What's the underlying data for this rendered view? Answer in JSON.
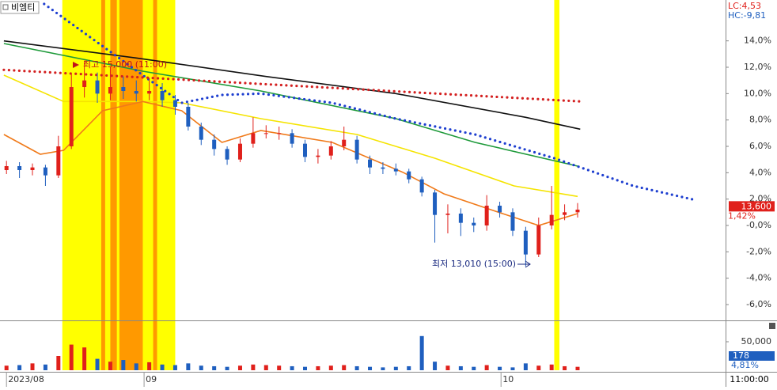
{
  "chart_data": {
    "type": "candlestick",
    "title": "비엠티",
    "lc_label": "LC:4,53",
    "hc_label": "HC:-9,81",
    "xlim": [
      -0.5,
      55.4
    ],
    "ylim": [
      -7.2,
      17.1
    ],
    "yticks": [
      {
        "value": 14,
        "label": "14,0%"
      },
      {
        "value": 12,
        "label": "12,0%"
      },
      {
        "value": 10,
        "label": "10,0%"
      },
      {
        "value": 8,
        "label": "8,0%"
      },
      {
        "value": 6,
        "label": "6,0%"
      },
      {
        "value": 4,
        "label": "4,0%"
      },
      {
        "value": 2,
        "label": "2,0%"
      },
      {
        "value": 0,
        "label": "-0,0%"
      },
      {
        "value": -2,
        "label": "-2,0%"
      },
      {
        "value": -4,
        "label": "-4,0%"
      },
      {
        "value": -6,
        "label": "-6,0%"
      }
    ],
    "xticks": [
      {
        "value": 0,
        "label": "2023/08"
      },
      {
        "value": 10.6,
        "label": "09"
      },
      {
        "value": 38.1,
        "label": "10"
      }
    ],
    "time_label": "11:00:00",
    "grid": false,
    "up_color": "#e0201b",
    "down_color": "#1f5fbf",
    "open": [
      4.2,
      4.5,
      4.2,
      4.4,
      3.8,
      6.0,
      10.5,
      11.0,
      10.0,
      10.5,
      10.2,
      10.0,
      10.2,
      9.5,
      9.0,
      7.5,
      6.5,
      5.8,
      5.0,
      6.2,
      7.0,
      7.0,
      7.0,
      6.2,
      5.2,
      5.3,
      6.0,
      6.5,
      5.0,
      4.4,
      4.3,
      4.1,
      3.5,
      2.5,
      0.8,
      0.9,
      0.2,
      0.0,
      1.5,
      1.0,
      -0.4,
      -2.2,
      0.0,
      0.8,
      1.0
    ],
    "high": [
      4.9,
      4.8,
      4.7,
      4.6,
      6.8,
      11.5,
      12.5,
      11.6,
      12.0,
      11.3,
      11.0,
      11.2,
      10.8,
      9.9,
      9.3,
      7.8,
      6.9,
      6.0,
      6.6,
      8.2,
      7.6,
      7.5,
      7.3,
      6.5,
      5.8,
      6.4,
      7.5,
      6.8,
      5.3,
      4.8,
      4.7,
      4.3,
      3.7,
      2.7,
      1.6,
      1.3,
      0.6,
      2.3,
      1.8,
      1.3,
      -0.1,
      0.6,
      3.0,
      1.6,
      1.7
    ],
    "low": [
      3.9,
      3.6,
      3.8,
      3.0,
      3.6,
      5.8,
      9.7,
      9.3,
      9.5,
      9.6,
      9.4,
      9.5,
      9.0,
      8.4,
      7.2,
      6.1,
      5.3,
      4.6,
      4.8,
      5.9,
      6.6,
      6.5,
      5.9,
      4.8,
      4.7,
      5.0,
      5.7,
      4.7,
      3.9,
      3.9,
      3.8,
      3.2,
      2.2,
      -1.3,
      -0.6,
      -0.8,
      -0.5,
      -0.4,
      0.6,
      -0.8,
      -3.1,
      -2.4,
      -0.3,
      0.4,
      0.6
    ],
    "close": [
      4.5,
      4.2,
      4.4,
      3.8,
      6.0,
      10.5,
      11.0,
      10.0,
      10.5,
      10.2,
      10.0,
      10.2,
      9.5,
      9.0,
      7.5,
      6.5,
      5.8,
      5.0,
      6.2,
      7.0,
      7.0,
      7.0,
      6.2,
      5.2,
      5.3,
      6.0,
      6.5,
      5.0,
      4.4,
      4.3,
      4.1,
      3.5,
      2.5,
      0.8,
      0.9,
      0.2,
      0.0,
      1.5,
      1.0,
      -0.4,
      -2.2,
      0.0,
      0.8,
      1.0,
      1.2
    ],
    "lines": [
      {
        "color": "#111111",
        "style": "solid",
        "x": [
          -0.2,
          10,
          20,
          30,
          40,
          44.2
        ],
        "values": [
          14.0,
          12.7,
          11.3,
          10.0,
          8.2,
          7.3
        ]
      },
      {
        "color": "#1e9a3a",
        "style": "solid",
        "x": [
          -0.2,
          10.5,
          19.6,
          30,
          36.1,
          44
        ],
        "values": [
          13.8,
          11.7,
          10.2,
          8.1,
          6.3,
          4.5
        ]
      },
      {
        "color": "#f5e400",
        "style": "solid",
        "x": [
          -0.2,
          4.4,
          10.5,
          13.5,
          19.6,
          27,
          33,
          39.1,
          44
        ],
        "values": [
          11.4,
          9.4,
          9.4,
          9.3,
          8.1,
          6.9,
          5.1,
          3.0,
          2.2
        ]
      },
      {
        "color": "#f07a1a",
        "style": "solid",
        "x": [
          -0.2,
          2.6,
          4.4,
          7.4,
          10.5,
          13.5,
          16.6,
          19.6,
          25.1,
          30.6,
          33.7,
          37.3,
          41,
          44
        ],
        "values": [
          6.9,
          5.4,
          5.7,
          8.7,
          9.4,
          8.7,
          6.3,
          7.2,
          6.3,
          4.0,
          2.4,
          1.2,
          0,
          0.9
        ]
      },
      {
        "color": "#1e3fd0",
        "style": "dotted",
        "x": [
          2.9,
          10.5,
          13.5,
          16.6,
          19.6,
          25.1,
          30,
          36.1,
          42.2,
          48.3,
          53.2
        ],
        "values": [
          16.8,
          11.4,
          9.3,
          9.9,
          10.0,
          9.3,
          8.1,
          6.9,
          5.1,
          3.0,
          1.9
        ]
      },
      {
        "color": "#d42020",
        "style": "dotted",
        "x": [
          -0.2,
          44.3
        ],
        "values": [
          11.8,
          9.4
        ]
      }
    ],
    "highlight_bands": [
      {
        "start": 4.3,
        "end": 13.0,
        "color": "#ffff00"
      },
      {
        "start": 7.3,
        "end": 7.6,
        "color": "#ff9900"
      },
      {
        "start": 8.0,
        "end": 8.5,
        "color": "#ff9900"
      },
      {
        "start": 8.7,
        "end": 10.5,
        "color": "#ff9900"
      },
      {
        "start": 11.3,
        "end": 11.6,
        "color": "#ff9900"
      },
      {
        "start": 42.2,
        "end": 42.6,
        "color": "#ffff00"
      }
    ],
    "high_annotation": "최고 15,000 (11:00)",
    "low_annotation": "최저 13,010 (15:00)",
    "last": {
      "pct": 1.42,
      "price_label": "13,600",
      "pct_label": "1,42%"
    },
    "volume": {
      "ylim": [
        0,
        87500
      ],
      "yticks": [
        {
          "value": 50000,
          "label": "50,000"
        }
      ],
      "values": [
        8000,
        9000,
        12000,
        10000,
        25000,
        45000,
        40000,
        20000,
        15000,
        18000,
        12000,
        14000,
        10000,
        9000,
        12000,
        8000,
        7000,
        6000,
        8000,
        10000,
        9000,
        8000,
        7000,
        6000,
        7000,
        8000,
        9000,
        7000,
        6000,
        5000,
        6000,
        7000,
        60000,
        15000,
        8000,
        7000,
        6000,
        9000,
        6000,
        5000,
        12000,
        8000,
        10000,
        7000,
        6000
      ],
      "last_label": "178",
      "ratio_label": "4,81%"
    }
  }
}
